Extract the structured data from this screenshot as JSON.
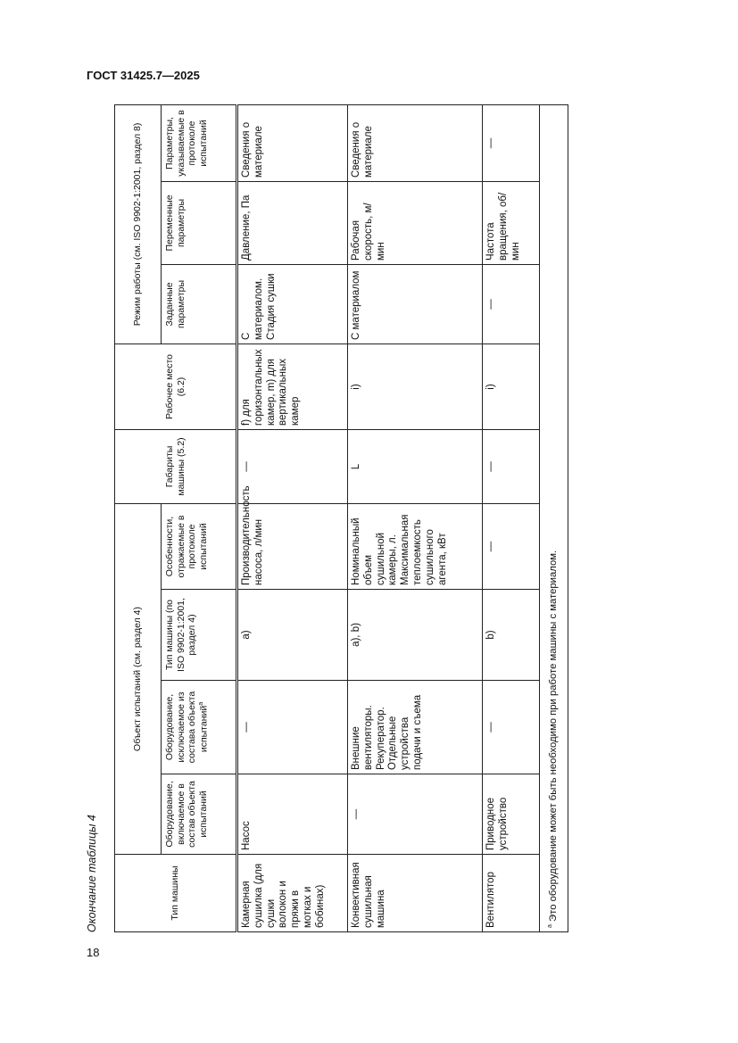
{
  "document": {
    "standard": "ГОСТ 31425.7—2025",
    "page_number": "18",
    "caption": "Окончание таблицы 4"
  },
  "table": {
    "group_headers": {
      "object": "Объект испытаний (см. раздел 4)",
      "mode": "Режим работы (см. ISO 9902-1:2001, раздел 8)"
    },
    "headers": {
      "machine_type": "Тип машины",
      "included": "Оборудование, включаемое в состав объекта испытаний",
      "excluded": "Оборудование, исключаемое из состава объекта испытаний",
      "excluded_sup": "a",
      "iso_type": "Тип машины (по ISO 9902-1:2001, раздел 4)",
      "features": "Особенности, отражаемые в протоколе испытаний",
      "dimensions": "Габариты машины (5.2)",
      "workplace": "Рабочее место (6.2)",
      "set_params": "Заданные параметры",
      "var_params": "Переменные параметры",
      "report_params": "Параметры, указываемые в протоколе испытаний"
    },
    "rows": [
      {
        "machine_type": "Камерная сушилка (для сушки волокон и пряжи в мотках и бобинах)",
        "included": "Насос",
        "excluded": "—",
        "iso_type": "a)",
        "features": "Производительность насоса, л/мин",
        "dimensions": "—",
        "workplace": "f) для горизонтальных камер, m) для вертикальных камер",
        "set_params": "С материалом. Стадия сушки",
        "var_params": "Давление, Па",
        "report_params": "Сведения о материале"
      },
      {
        "machine_type": "Конвективная сушильная машина",
        "included": "—",
        "excluded": "Внешние вентиляторы. Рекуператор. Отдельные устройства подачи и съема",
        "iso_type": "a), b)",
        "features": "Номинальный объем сушильной камеры, л. Максимальная теплоемкость сушильного агента, кВт",
        "dimensions": "L",
        "workplace": "i)",
        "set_params": "С материалом",
        "var_params": "Рабочая скорость, м/мин",
        "report_params": "Сведения о материале"
      },
      {
        "machine_type": "Вентилятор",
        "included": "Приводное устройство",
        "excluded": "—",
        "iso_type": "b)",
        "features": "—",
        "dimensions": "—",
        "workplace": "i)",
        "set_params": "—",
        "var_params": "Частота вращения, об/мин",
        "report_params": "—"
      }
    ],
    "footnote_mark": "a",
    "footnote": "Это оборудование может быть необходимо при работе машины с материалом."
  }
}
